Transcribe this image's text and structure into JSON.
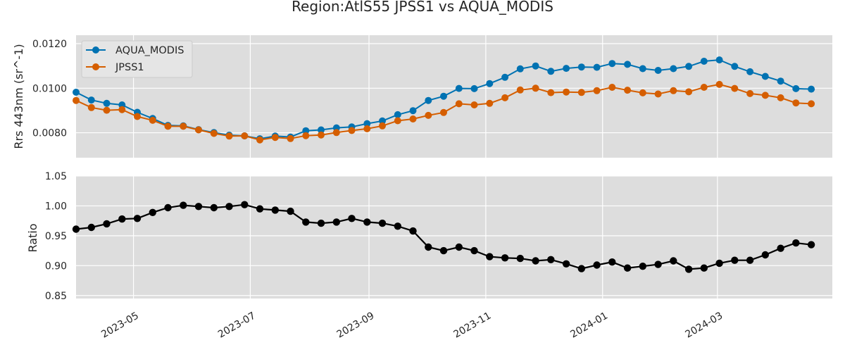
{
  "chart_data": [
    {
      "type": "line",
      "title": "Region:AtlS55 JPSS1 vs AQUA_MODIS",
      "xlabel": "",
      "ylabel": "Rrs 443nm (sr^-1)",
      "x_ticks": [
        "2023-05",
        "2023-07",
        "2023-09",
        "2023-11",
        "2024-01",
        "2024-03"
      ],
      "y_ticks": [
        "0.0080",
        "0.0100",
        "0.0120"
      ],
      "xlim": [
        "2023-04-01",
        "2024-04-30"
      ],
      "ylim": [
        0.00688,
        0.01238
      ],
      "grid": true,
      "legend_position": "top-left",
      "x": [
        "2023-04-01",
        "2023-04-09",
        "2023-04-17",
        "2023-04-25",
        "2023-05-03",
        "2023-05-11",
        "2023-05-19",
        "2023-05-27",
        "2023-06-04",
        "2023-06-12",
        "2023-06-20",
        "2023-06-28",
        "2023-07-06",
        "2023-07-14",
        "2023-07-22",
        "2023-07-30",
        "2023-08-07",
        "2023-08-15",
        "2023-08-23",
        "2023-08-31",
        "2023-09-08",
        "2023-09-16",
        "2023-09-24",
        "2023-10-02",
        "2023-10-10",
        "2023-10-18",
        "2023-10-26",
        "2023-11-03",
        "2023-11-11",
        "2023-11-19",
        "2023-11-27",
        "2023-12-05",
        "2023-12-13",
        "2023-12-21",
        "2023-12-29",
        "2024-01-06",
        "2024-01-14",
        "2024-01-22",
        "2024-01-30",
        "2024-02-07",
        "2024-02-15",
        "2024-02-23",
        "2024-03-02",
        "2024-03-10",
        "2024-03-18",
        "2024-03-26",
        "2024-04-03",
        "2024-04-11",
        "2024-04-19"
      ],
      "series": [
        {
          "name": "AQUA_MODIS",
          "color": "#0072b2",
          "values": [
            0.00982,
            0.00947,
            0.00932,
            0.00925,
            0.00892,
            0.00864,
            0.00833,
            0.00831,
            0.00814,
            0.00801,
            0.00789,
            0.00786,
            0.00773,
            0.00785,
            0.00781,
            0.00809,
            0.00813,
            0.00822,
            0.00826,
            0.00841,
            0.00853,
            0.00881,
            0.00899,
            0.00945,
            0.00964,
            0.00999,
            0.00998,
            0.01021,
            0.01049,
            0.01087,
            0.011,
            0.01076,
            0.01089,
            0.01095,
            0.01094,
            0.01111,
            0.01107,
            0.01088,
            0.0108,
            0.01088,
            0.01098,
            0.01121,
            0.01127,
            0.01098,
            0.01074,
            0.01053,
            0.01032,
            0.00998,
            0.00996
          ]
        },
        {
          "name": "JPSS1",
          "color": "#d55e00",
          "values": [
            0.00945,
            0.00913,
            0.00901,
            0.00904,
            0.00873,
            0.00856,
            0.00829,
            0.00829,
            0.00813,
            0.00797,
            0.00785,
            0.00786,
            0.00768,
            0.00779,
            0.00774,
            0.00787,
            0.0079,
            0.00801,
            0.0081,
            0.00818,
            0.00831,
            0.00854,
            0.00862,
            0.00878,
            0.00891,
            0.0093,
            0.00925,
            0.00932,
            0.00957,
            0.00992,
            0.01,
            0.0098,
            0.00983,
            0.00981,
            0.00989,
            0.01004,
            0.00991,
            0.00979,
            0.00974,
            0.00989,
            0.00984,
            0.01004,
            0.01017,
            0.00999,
            0.00976,
            0.00968,
            0.00957,
            0.00934,
            0.0093
          ]
        }
      ]
    },
    {
      "type": "line",
      "title": "",
      "xlabel": "",
      "ylabel": "Ratio",
      "x_ticks": [
        "2023-05",
        "2023-07",
        "2023-09",
        "2023-11",
        "2024-01",
        "2024-03"
      ],
      "y_ticks": [
        "0.85",
        "0.90",
        "0.95",
        "1.00",
        "1.05"
      ],
      "xlim": [
        "2023-04-01",
        "2024-04-30"
      ],
      "ylim": [
        0.845,
        1.05
      ],
      "grid": true,
      "x": [
        "2023-04-01",
        "2023-04-09",
        "2023-04-17",
        "2023-04-25",
        "2023-05-03",
        "2023-05-11",
        "2023-05-19",
        "2023-05-27",
        "2023-06-04",
        "2023-06-12",
        "2023-06-20",
        "2023-06-28",
        "2023-07-06",
        "2023-07-14",
        "2023-07-22",
        "2023-07-30",
        "2023-08-07",
        "2023-08-15",
        "2023-08-23",
        "2023-08-31",
        "2023-09-08",
        "2023-09-16",
        "2023-09-24",
        "2023-10-02",
        "2023-10-10",
        "2023-10-18",
        "2023-10-26",
        "2023-11-03",
        "2023-11-11",
        "2023-11-19",
        "2023-11-27",
        "2023-12-05",
        "2023-12-13",
        "2023-12-21",
        "2023-12-29",
        "2024-01-06",
        "2024-01-14",
        "2024-01-22",
        "2024-01-30",
        "2024-02-07",
        "2024-02-15",
        "2024-02-23",
        "2024-03-02",
        "2024-03-10",
        "2024-03-18",
        "2024-03-26",
        "2024-04-03",
        "2024-04-11",
        "2024-04-19"
      ],
      "series": [
        {
          "color": "#000000",
          "values": [
            0.961,
            0.964,
            0.97,
            0.978,
            0.979,
            0.989,
            0.997,
            1.001,
            0.999,
            0.997,
            0.999,
            1.002,
            0.995,
            0.993,
            0.991,
            0.973,
            0.971,
            0.973,
            0.979,
            0.973,
            0.971,
            0.966,
            0.958,
            0.931,
            0.925,
            0.931,
            0.925,
            0.915,
            0.913,
            0.912,
            0.908,
            0.91,
            0.903,
            0.895,
            0.901,
            0.906,
            0.896,
            0.899,
            0.902,
            0.908,
            0.894,
            0.896,
            0.904,
            0.909,
            0.909,
            0.918,
            0.929,
            0.938,
            0.935
          ]
        }
      ]
    }
  ]
}
